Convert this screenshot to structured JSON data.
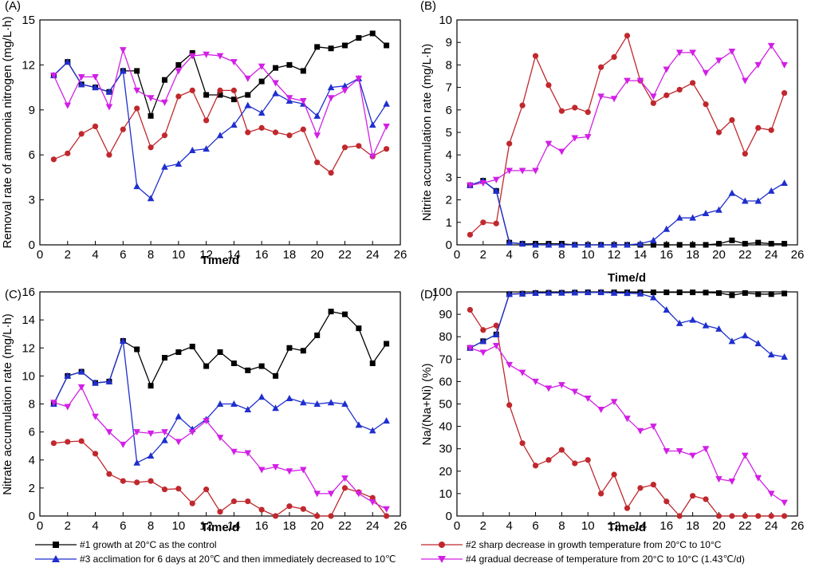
{
  "chart_data": [
    {
      "type": "line",
      "panel_label": "(A)",
      "xlabel": "Time/d",
      "ylabel": "Removal rate of ammonia nitrogen (mg/L·h)",
      "xlim": [
        0,
        26
      ],
      "ylim": [
        0,
        15
      ],
      "x_ticks": [
        0,
        2,
        4,
        6,
        8,
        10,
        12,
        14,
        16,
        18,
        20,
        22,
        24,
        26
      ],
      "y_ticks": [
        0,
        3,
        6,
        9,
        12,
        15
      ],
      "x": [
        1,
        2,
        3,
        4,
        5,
        6,
        7,
        8,
        9,
        10,
        11,
        12,
        13,
        14,
        15,
        16,
        17,
        18,
        19,
        20,
        21,
        22,
        23,
        24,
        25
      ],
      "series": [
        {
          "key": "s1",
          "values": [
            11.3,
            12.2,
            10.7,
            10.5,
            10.2,
            11.6,
            11.6,
            8.6,
            11.0,
            12.0,
            12.8,
            10.0,
            10.0,
            9.7,
            10.0,
            10.9,
            11.8,
            12.0,
            11.6,
            13.2,
            13.1,
            13.3,
            13.8,
            14.1,
            13.3
          ]
        },
        {
          "key": "s2",
          "values": [
            5.7,
            6.1,
            7.4,
            7.9,
            6.0,
            7.7,
            9.1,
            6.5,
            7.3,
            9.9,
            10.3,
            8.3,
            10.3,
            10.3,
            7.5,
            7.8,
            7.5,
            7.3,
            7.7,
            5.5,
            4.8,
            6.5,
            6.6,
            5.9,
            6.4
          ]
        },
        {
          "key": "s3",
          "values": [
            11.3,
            12.2,
            10.7,
            10.5,
            10.2,
            11.6,
            3.9,
            3.1,
            5.2,
            5.4,
            6.3,
            6.4,
            7.3,
            8.0,
            9.3,
            8.8,
            10.1,
            9.6,
            9.4,
            8.6,
            10.5,
            10.6,
            11.1,
            8.0,
            9.4
          ]
        },
        {
          "key": "s4",
          "values": [
            11.3,
            9.3,
            11.2,
            11.2,
            9.2,
            13.0,
            10.3,
            9.8,
            9.5,
            11.6,
            12.6,
            12.7,
            12.6,
            12.2,
            11.1,
            11.9,
            10.8,
            9.8,
            9.6,
            7.3,
            9.8,
            10.3,
            11.1,
            5.9,
            7.9
          ]
        }
      ]
    },
    {
      "type": "line",
      "panel_label": "(B)",
      "xlabel": "Time/d",
      "ylabel": "Nitrite accumulation rate (mg/L·h)",
      "xlim": [
        0,
        26
      ],
      "ylim": [
        0,
        10
      ],
      "x_ticks": [
        0,
        2,
        4,
        6,
        8,
        10,
        12,
        14,
        16,
        18,
        20,
        22,
        24,
        26
      ],
      "y_ticks": [
        0,
        1,
        2,
        3,
        4,
        5,
        6,
        7,
        8,
        9,
        10
      ],
      "x": [
        1,
        2,
        3,
        4,
        5,
        6,
        7,
        8,
        9,
        10,
        11,
        12,
        13,
        14,
        15,
        16,
        17,
        18,
        19,
        20,
        21,
        22,
        23,
        24,
        25
      ],
      "series": [
        {
          "key": "s1",
          "values": [
            2.65,
            2.85,
            2.4,
            0.1,
            0.05,
            0.05,
            0.05,
            0.05,
            0.0,
            0.0,
            0.0,
            0.0,
            0.0,
            0.0,
            0.0,
            0.0,
            0.0,
            0.0,
            0.0,
            0.05,
            0.2,
            0.05,
            0.1,
            0.05,
            0.05
          ]
        },
        {
          "key": "s2",
          "values": [
            0.45,
            1.0,
            0.95,
            4.5,
            6.2,
            8.4,
            7.1,
            5.95,
            6.1,
            5.9,
            7.9,
            8.35,
            9.3,
            7.3,
            6.3,
            6.65,
            6.9,
            7.2,
            6.25,
            5.0,
            5.55,
            4.05,
            5.2,
            5.1,
            6.75
          ]
        },
        {
          "key": "s3",
          "values": [
            2.65,
            2.85,
            2.4,
            0.1,
            0.05,
            0.0,
            0.0,
            0.0,
            0.0,
            0.0,
            0.0,
            0.0,
            0.0,
            0.05,
            0.2,
            0.7,
            1.2,
            1.2,
            1.4,
            1.55,
            2.3,
            1.95,
            1.95,
            2.4,
            2.75
          ]
        },
        {
          "key": "s4",
          "values": [
            2.65,
            2.75,
            2.9,
            3.3,
            3.3,
            3.3,
            4.5,
            4.15,
            4.75,
            4.8,
            6.6,
            6.5,
            7.3,
            7.3,
            6.6,
            7.8,
            8.55,
            8.55,
            7.65,
            8.2,
            8.6,
            7.3,
            8.0,
            8.85,
            8.0
          ]
        }
      ]
    },
    {
      "type": "line",
      "panel_label": "(C)",
      "xlabel": "Time/d",
      "ylabel": "Nitrate accumulation rate (mg/L·h)",
      "xlim": [
        0,
        26
      ],
      "ylim": [
        0,
        16
      ],
      "x_ticks": [
        0,
        2,
        4,
        6,
        8,
        10,
        12,
        14,
        16,
        18,
        20,
        22,
        24,
        26
      ],
      "y_ticks": [
        0,
        2,
        4,
        6,
        8,
        10,
        12,
        14,
        16
      ],
      "x": [
        1,
        2,
        3,
        4,
        5,
        6,
        7,
        8,
        9,
        10,
        11,
        12,
        13,
        14,
        15,
        16,
        17,
        18,
        19,
        20,
        21,
        22,
        23,
        24,
        25
      ],
      "series": [
        {
          "key": "s1",
          "values": [
            8.0,
            10.0,
            10.3,
            9.5,
            9.6,
            12.5,
            11.9,
            9.3,
            11.3,
            11.7,
            12.1,
            10.7,
            11.7,
            10.9,
            10.4,
            10.7,
            10.0,
            12.0,
            11.8,
            12.9,
            14.6,
            14.4,
            13.4,
            10.9,
            12.3
          ]
        },
        {
          "key": "s2",
          "values": [
            5.2,
            5.3,
            5.35,
            4.45,
            3.0,
            2.5,
            2.4,
            2.5,
            1.9,
            1.95,
            0.9,
            1.9,
            0.3,
            1.05,
            1.05,
            0.45,
            0.0,
            0.7,
            0.5,
            0.0,
            0.0,
            2.0,
            1.7,
            1.3,
            0.0
          ]
        },
        {
          "key": "s3",
          "values": [
            8.0,
            10.0,
            10.3,
            9.5,
            9.6,
            12.5,
            3.8,
            4.3,
            5.4,
            7.1,
            6.2,
            6.9,
            8.0,
            8.0,
            7.6,
            8.5,
            7.7,
            8.4,
            8.1,
            8.0,
            8.1,
            8.0,
            6.5,
            6.1,
            6.8
          ]
        },
        {
          "key": "s4",
          "values": [
            8.1,
            7.8,
            9.2,
            7.1,
            6.0,
            5.1,
            6.0,
            5.9,
            6.0,
            5.3,
            6.0,
            6.8,
            5.6,
            4.6,
            4.5,
            3.3,
            3.5,
            3.2,
            3.3,
            1.6,
            1.6,
            2.7,
            1.6,
            1.0,
            0.5
          ]
        }
      ]
    },
    {
      "type": "line",
      "panel_label": "(D)",
      "xlabel": "Time/d",
      "ylabel": "Na/(Na+Ni) (%)",
      "xlim": [
        0,
        26
      ],
      "ylim": [
        0,
        100
      ],
      "x_ticks": [
        0,
        2,
        4,
        6,
        8,
        10,
        12,
        14,
        16,
        18,
        20,
        22,
        24,
        26
      ],
      "y_ticks": [
        0,
        10,
        20,
        30,
        40,
        50,
        60,
        70,
        80,
        90,
        100
      ],
      "x": [
        1,
        2,
        3,
        4,
        5,
        6,
        7,
        8,
        9,
        10,
        11,
        12,
        13,
        14,
        15,
        16,
        17,
        18,
        19,
        20,
        21,
        22,
        23,
        24,
        25
      ],
      "series": [
        {
          "key": "s1",
          "values": [
            75,
            78,
            81,
            99,
            99.2,
            99.5,
            99.6,
            99.6,
            99.7,
            99.8,
            99.8,
            99.8,
            99.8,
            99.8,
            99.8,
            99.8,
            99.8,
            99.8,
            99.7,
            99.5,
            98.5,
            99.5,
            99.0,
            99.0,
            99.3
          ]
        },
        {
          "key": "s2",
          "values": [
            92,
            83,
            85,
            49.5,
            32.5,
            22.5,
            25,
            29.5,
            23.5,
            25,
            10,
            18.5,
            3.5,
            12.5,
            14,
            6.5,
            0,
            9,
            7.5,
            0,
            0,
            0,
            0,
            0,
            0
          ]
        },
        {
          "key": "s3",
          "values": [
            75,
            78,
            81,
            99,
            99.2,
            99.5,
            99.6,
            99.6,
            99.7,
            99.8,
            99.8,
            99.5,
            99.4,
            99.2,
            97.5,
            92,
            86,
            87.5,
            85,
            83.5,
            78,
            80.5,
            77,
            72,
            71
          ]
        },
        {
          "key": "s4",
          "values": [
            75,
            73,
            76,
            67.5,
            64,
            60,
            57,
            58.5,
            55.5,
            52.5,
            47.5,
            51,
            43.5,
            38,
            40,
            29,
            29,
            27,
            30,
            16.5,
            15.5,
            27,
            17,
            10,
            6
          ]
        }
      ]
    }
  ],
  "legend": {
    "s1": {
      "label": "#1 growth at 20°C as the control",
      "color": "#000000",
      "marker": "square"
    },
    "s2": {
      "label": "#2 sharp decrease in growth temperature from 20°C to 10°C",
      "color": "#c0282d",
      "marker": "circle"
    },
    "s3": {
      "label": "#3 acclimation for 6 days at 20℃ and then immediately decreased to 10℃",
      "color": "#1f2fce",
      "marker": "triangle-up"
    },
    "s4": {
      "label": "#4 gradual decrease of temperature from 20°C to 10°C (1.43℃/d)",
      "color": "#d21fe6",
      "marker": "triangle-down"
    }
  }
}
